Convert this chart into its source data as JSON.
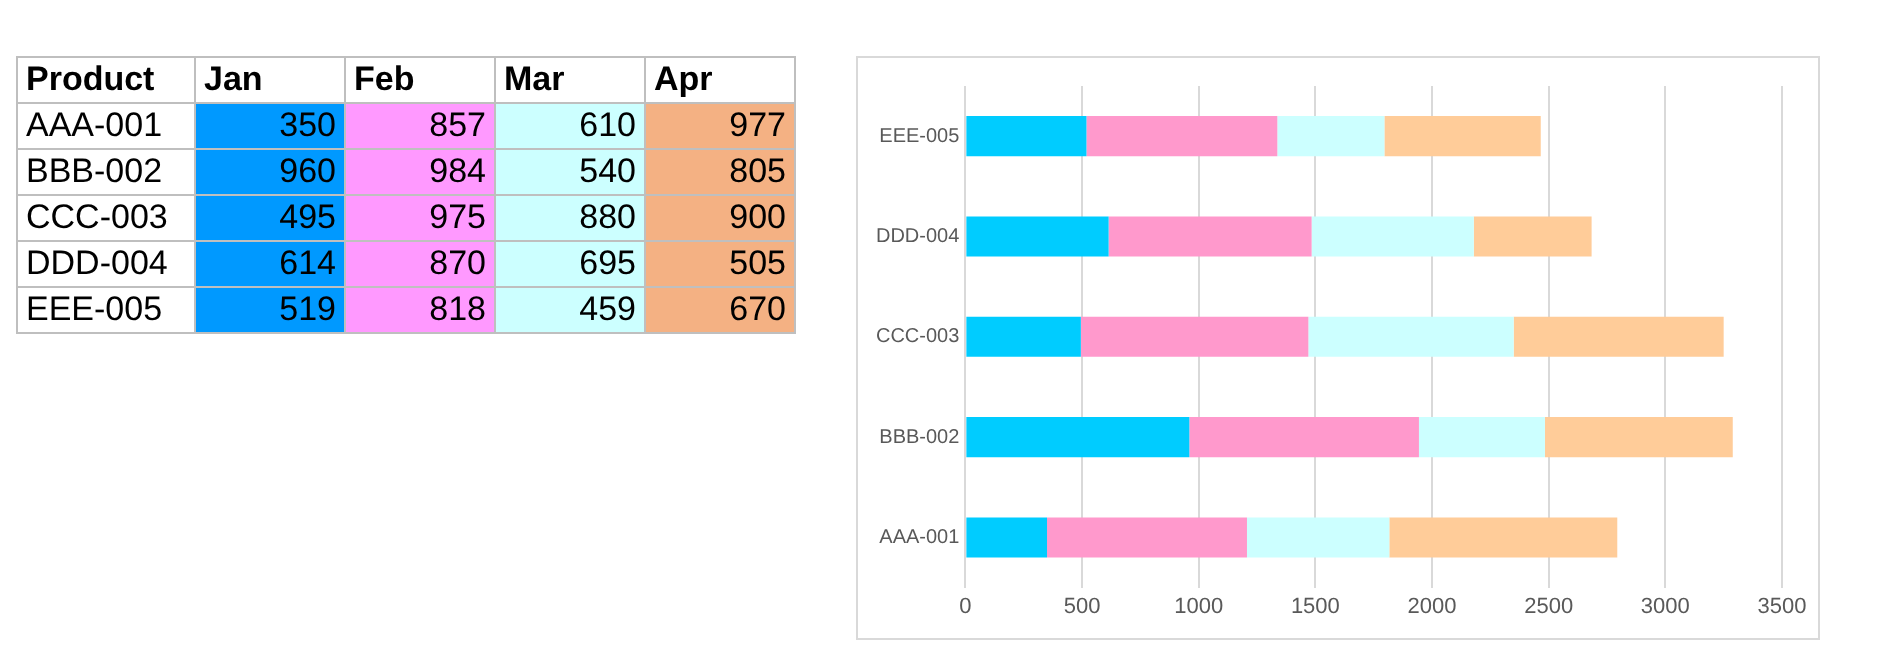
{
  "chart_data": [
    {
      "type": "heatmap",
      "xlabel": "Product",
      "categories": [
        "Jan",
        "Feb",
        "Mar",
        "Apr"
      ],
      "y_categories": [
        "AAA-001",
        "BBB-002",
        "CCC-003",
        "DDD-004",
        "EEE-005"
      ],
      "colors": [
        "#0099ff",
        "#ff99ff",
        "#ccffff",
        "#f4b183"
      ],
      "cells": [
        [
          350,
          857,
          610,
          977
        ],
        [
          960,
          984,
          540,
          805
        ],
        [
          495,
          975,
          880,
          900
        ],
        [
          614,
          870,
          695,
          505
        ],
        [
          519,
          818,
          459,
          670
        ]
      ],
      "data_labels": true
    },
    {
      "type": "bar",
      "orientation": "horizontal",
      "stacked": true,
      "categories": [
        "EEE-005",
        "DDD-004",
        "CCC-003",
        "BBB-002",
        "AAA-001"
      ],
      "series": [
        {
          "color": "#00ccff",
          "values": [
            519,
            614,
            495,
            960,
            350
          ]
        },
        {
          "color": "#ff99cc",
          "values": [
            818,
            870,
            975,
            984,
            857
          ]
        },
        {
          "color": "#ccffff",
          "values": [
            459,
            695,
            880,
            540,
            610
          ]
        },
        {
          "color": "#ffcc99",
          "values": [
            670,
            505,
            900,
            805,
            977
          ]
        }
      ],
      "xlim": [
        0,
        3500
      ],
      "xticks": [
        0,
        500,
        1000,
        1500,
        2000,
        2500,
        3000,
        3500
      ],
      "grid": "x"
    }
  ]
}
